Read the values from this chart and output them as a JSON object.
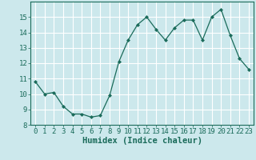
{
  "x": [
    0,
    1,
    2,
    3,
    4,
    5,
    6,
    7,
    8,
    9,
    10,
    11,
    12,
    13,
    14,
    15,
    16,
    17,
    18,
    19,
    20,
    21,
    22,
    23
  ],
  "y": [
    10.8,
    10.0,
    10.1,
    9.2,
    8.7,
    8.7,
    8.5,
    8.6,
    9.9,
    12.1,
    13.5,
    14.5,
    15.0,
    14.2,
    13.5,
    14.3,
    14.8,
    14.8,
    13.5,
    15.0,
    15.5,
    13.8,
    12.3,
    11.6
  ],
  "line_color": "#1a6b5a",
  "marker": "D",
  "marker_size": 2.0,
  "bg_color": "#cce8ec",
  "grid_color": "#ffffff",
  "xlabel": "Humidex (Indice chaleur)",
  "xlim": [
    -0.5,
    23.5
  ],
  "ylim": [
    8,
    16
  ],
  "yticks": [
    8,
    9,
    10,
    11,
    12,
    13,
    14,
    15
  ],
  "xticks": [
    0,
    1,
    2,
    3,
    4,
    5,
    6,
    7,
    8,
    9,
    10,
    11,
    12,
    13,
    14,
    15,
    16,
    17,
    18,
    19,
    20,
    21,
    22,
    23
  ],
  "tick_color": "#1a6b5a",
  "label_fontsize": 7.5,
  "tick_fontsize": 6.5
}
